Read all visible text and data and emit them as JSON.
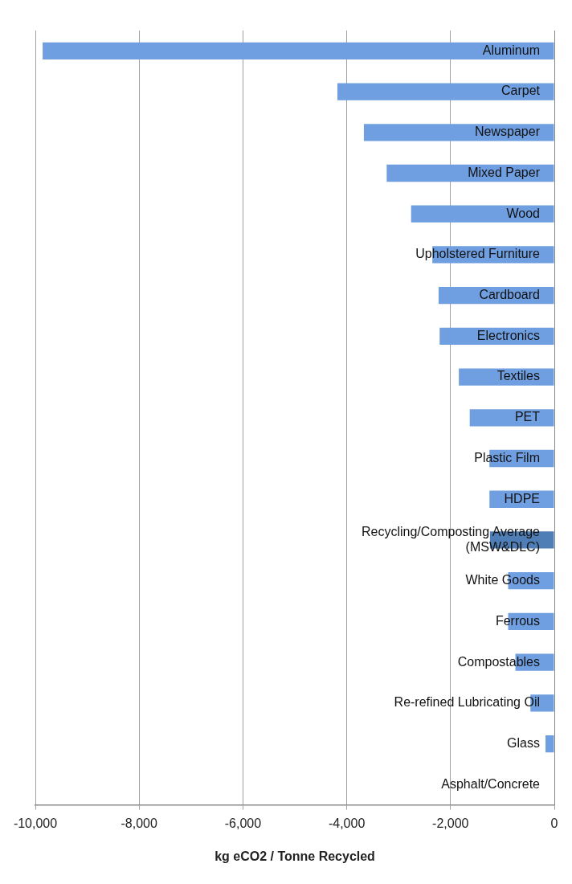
{
  "chart_data": {
    "type": "bar",
    "orientation": "horizontal",
    "xlabel": "kg eCO2 / Tonne Recycled",
    "categories": [
      "Aluminum",
      "Carpet",
      "Newspaper",
      "Mixed Paper",
      "Wood",
      "Upholstered Furniture",
      "Cardboard",
      "Electronics",
      "Textiles",
      "PET",
      "Plastic Film",
      "HDPE",
      "Recycling/Composting Average (MSW&DLC)",
      "White Goods",
      "Ferrous",
      "Compostables",
      "Re-refined Lubricating Oil",
      "Glass",
      "Asphalt/Concrete"
    ],
    "values": [
      -9860,
      -4180,
      -3670,
      -3230,
      -2760,
      -2350,
      -2230,
      -2210,
      -1840,
      -1630,
      -1250,
      -1250,
      -1240,
      -890,
      -890,
      -750,
      -460,
      -170,
      null
    ],
    "colors": [
      "#6f9fe0",
      "#6f9fe0",
      "#6f9fe0",
      "#6f9fe0",
      "#6f9fe0",
      "#6f9fe0",
      "#6f9fe0",
      "#6f9fe0",
      "#6f9fe0",
      "#6f9fe0",
      "#6f9fe0",
      "#6f9fe0",
      "#4f7db5",
      "#6f9fe0",
      "#6f9fe0",
      "#6f9fe0",
      "#6f9fe0",
      "#6f9fe0",
      "#6f9fe0"
    ],
    "xlim": [
      -10000,
      0
    ],
    "xticks": [
      {
        "value": -10000,
        "label": "-10,000"
      },
      {
        "value": -8000,
        "label": "-8,000"
      },
      {
        "value": -6000,
        "label": "-6,000"
      },
      {
        "value": -4000,
        "label": "-4,000"
      },
      {
        "value": -2000,
        "label": "-2,000"
      },
      0
    ],
    "grid": "x",
    "legend": false
  }
}
